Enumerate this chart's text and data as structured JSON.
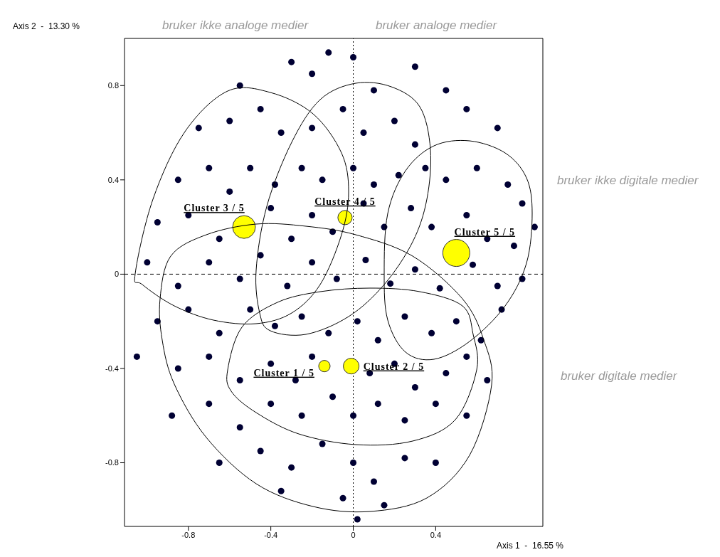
{
  "chart_data": {
    "type": "scatter",
    "xlabel": "Axis 1  -  16.55 %",
    "ylabel": "Axis 2  -  13.30 %",
    "annotations": [
      "bruker ikke analoge medier",
      "bruker analoge medier",
      "bruker ikke digitale medier",
      "bruker digitale medier"
    ],
    "xlim": [
      -1.11,
      0.92
    ],
    "ylim": [
      -1.07,
      1.0
    ],
    "xticks": [
      -0.8,
      -0.4,
      0,
      0.4
    ],
    "yticks": [
      -0.8,
      -0.4,
      0,
      0.4,
      0.8
    ],
    "grid": false,
    "marker": "circle",
    "ref_lines": [
      {
        "axis": "x",
        "value": 0,
        "line_style": "dotted"
      },
      {
        "axis": "y",
        "value": 0,
        "line_style": "dashed"
      }
    ],
    "series": [
      {
        "type": "scatter",
        "color": "#000033",
        "x": [
          -0.12,
          0.0,
          -0.3,
          -0.2,
          0.3,
          0.45,
          0.1,
          -0.55,
          -0.75,
          -0.6,
          -0.45,
          -0.35,
          -0.2,
          -0.05,
          0.05,
          0.2,
          0.3,
          0.55,
          0.7,
          -0.85,
          -0.7,
          -0.6,
          -0.5,
          -0.38,
          -0.25,
          -0.15,
          0.0,
          0.1,
          0.22,
          0.35,
          0.45,
          0.6,
          0.75,
          0.82,
          -0.95,
          -0.8,
          -0.65,
          -0.4,
          -0.3,
          -0.2,
          -0.1,
          0.05,
          0.15,
          0.28,
          0.38,
          0.55,
          0.65,
          0.78,
          0.88,
          -1.0,
          -0.85,
          -0.7,
          -0.55,
          -0.45,
          -0.32,
          -0.2,
          -0.08,
          0.06,
          0.18,
          0.3,
          0.42,
          0.58,
          0.7,
          0.82,
          -0.95,
          -0.8,
          -0.65,
          -0.5,
          -0.38,
          -0.25,
          -0.12,
          0.02,
          0.12,
          0.25,
          0.38,
          0.5,
          0.62,
          0.72,
          -1.05,
          -0.85,
          -0.7,
          -0.55,
          -0.4,
          -0.28,
          -0.2,
          0.08,
          0.2,
          0.3,
          0.45,
          0.55,
          0.65,
          -0.88,
          -0.7,
          -0.55,
          -0.4,
          -0.25,
          -0.1,
          0.0,
          0.12,
          0.25,
          0.4,
          0.55,
          -0.65,
          -0.45,
          -0.3,
          -0.15,
          0.0,
          0.1,
          0.25,
          0.4,
          -0.05,
          0.15,
          -0.35,
          0.02
        ],
        "values": [
          0.94,
          0.92,
          0.9,
          0.85,
          0.88,
          0.78,
          0.78,
          0.8,
          0.62,
          0.65,
          0.7,
          0.6,
          0.62,
          0.7,
          0.6,
          0.65,
          0.55,
          0.7,
          0.62,
          0.4,
          0.45,
          0.35,
          0.45,
          0.38,
          0.45,
          0.4,
          0.45,
          0.38,
          0.42,
          0.45,
          0.4,
          0.45,
          0.38,
          0.3,
          0.22,
          0.25,
          0.15,
          0.28,
          0.15,
          0.25,
          0.18,
          0.3,
          0.2,
          0.28,
          0.2,
          0.25,
          0.15,
          0.12,
          0.2,
          0.05,
          -0.05,
          0.05,
          -0.02,
          0.08,
          -0.05,
          0.05,
          -0.02,
          0.06,
          -0.04,
          0.02,
          -0.06,
          0.04,
          -0.05,
          -0.02,
          -0.2,
          -0.15,
          -0.25,
          -0.15,
          -0.22,
          -0.18,
          -0.25,
          -0.2,
          -0.28,
          -0.18,
          -0.25,
          -0.2,
          -0.28,
          -0.15,
          -0.35,
          -0.4,
          -0.35,
          -0.45,
          -0.38,
          -0.45,
          -0.35,
          -0.42,
          -0.38,
          -0.48,
          -0.42,
          -0.35,
          -0.45,
          -0.6,
          -0.55,
          -0.65,
          -0.55,
          -0.6,
          -0.52,
          -0.6,
          -0.55,
          -0.62,
          -0.55,
          -0.6,
          -0.8,
          -0.75,
          -0.82,
          -0.72,
          -0.8,
          -0.88,
          -0.78,
          -0.8,
          -0.95,
          -0.98,
          -0.92,
          -1.04
        ]
      },
      {
        "type": "bubble",
        "name": "Cluster  1 / 5",
        "color": "#ffff00",
        "x": [
          -0.14
        ],
        "values": [
          -0.39
        ],
        "sizes": [
          0.18
        ]
      },
      {
        "type": "bubble",
        "name": "Cluster  2 / 5",
        "color": "#ffff00",
        "x": [
          -0.01
        ],
        "values": [
          -0.39
        ],
        "sizes": [
          0.34
        ]
      },
      {
        "type": "bubble",
        "name": "Cluster  3 / 5",
        "color": "#ffff00",
        "x": [
          -0.53
        ],
        "values": [
          0.2
        ],
        "sizes": [
          0.71
        ]
      },
      {
        "type": "bubble",
        "name": "Cluster  4 / 5",
        "color": "#ffff00",
        "x": [
          -0.04
        ],
        "values": [
          0.24
        ],
        "sizes": [
          0.28
        ]
      },
      {
        "type": "bubble",
        "name": "Cluster  5 / 5",
        "color": "#ffff00",
        "x": [
          0.5
        ],
        "values": [
          0.09
        ],
        "sizes": [
          1
        ]
      }
    ]
  }
}
